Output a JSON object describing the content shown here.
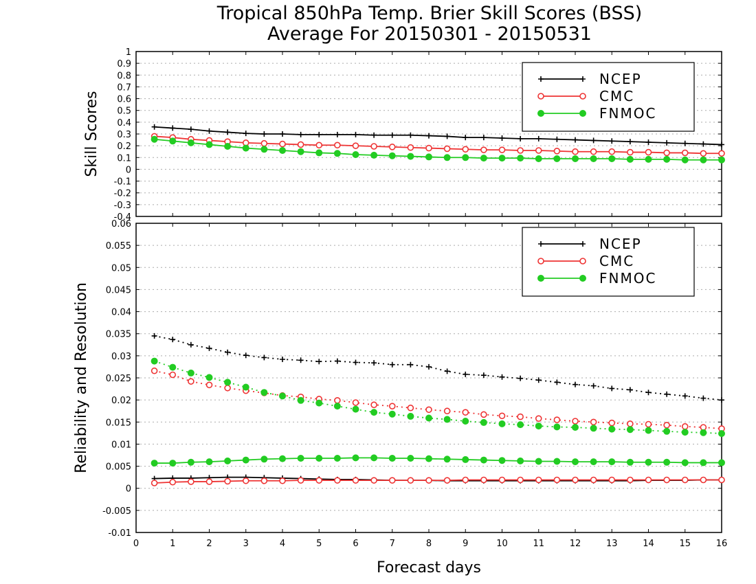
{
  "title_line1": "Tropical 850hPa Temp. Brier Skill Scores (BSS)",
  "title_line2": "Average For 20150301 - 20150531",
  "xlabel": "Forecast days",
  "chart_data": [
    {
      "type": "line",
      "ylabel": "Skill Scores",
      "xlim": [
        0,
        16
      ],
      "ylim": [
        -0.4,
        1
      ],
      "yticks": [
        -0.4,
        -0.3,
        -0.2,
        -0.1,
        0,
        0.1,
        0.2,
        0.3,
        0.4,
        0.5,
        0.6,
        0.7,
        0.8,
        0.9,
        1
      ],
      "ytick_labels": [
        "-0.4",
        "-0.3",
        "-0.2",
        "-0.1",
        "0",
        "0.1",
        "0.2",
        "0.3",
        "0.4",
        "0.5",
        "0.6",
        "0.7",
        "0.8",
        "0.9",
        "1"
      ],
      "xticks": [
        0,
        1,
        2,
        3,
        4,
        5,
        6,
        7,
        8,
        9,
        10,
        11,
        12,
        13,
        14,
        15,
        16
      ],
      "grid": true,
      "legend_position": "top-right",
      "legend": [
        "NCEP",
        "CMC",
        "FNMOC"
      ],
      "x": [
        0.5,
        1,
        1.5,
        2,
        2.5,
        3,
        3.5,
        4,
        4.5,
        5,
        5.5,
        6,
        6.5,
        7,
        7.5,
        8,
        8.5,
        9,
        9.5,
        10,
        10.5,
        11,
        11.5,
        12,
        12.5,
        13,
        13.5,
        14,
        14.5,
        15,
        15.5,
        16
      ],
      "series": [
        {
          "name": "NCEP",
          "color": "#000000",
          "marker": "plus",
          "style": "solid",
          "values": [
            0.36,
            0.35,
            0.34,
            0.325,
            0.315,
            0.305,
            0.3,
            0.3,
            0.295,
            0.295,
            0.295,
            0.295,
            0.29,
            0.29,
            0.29,
            0.285,
            0.28,
            0.27,
            0.27,
            0.265,
            0.26,
            0.26,
            0.255,
            0.25,
            0.245,
            0.24,
            0.235,
            0.23,
            0.225,
            0.22,
            0.215,
            0.21
          ]
        },
        {
          "name": "CMC",
          "color": "#ee3333",
          "marker": "open-circle",
          "style": "solid",
          "values": [
            0.28,
            0.27,
            0.255,
            0.245,
            0.235,
            0.225,
            0.22,
            0.215,
            0.21,
            0.205,
            0.205,
            0.2,
            0.195,
            0.19,
            0.185,
            0.18,
            0.175,
            0.17,
            0.165,
            0.165,
            0.16,
            0.16,
            0.155,
            0.15,
            0.15,
            0.15,
            0.145,
            0.145,
            0.14,
            0.14,
            0.135,
            0.135
          ]
        },
        {
          "name": "FNMOC",
          "color": "#22cc22",
          "marker": "filled-circle",
          "style": "solid",
          "values": [
            0.255,
            0.24,
            0.225,
            0.21,
            0.195,
            0.18,
            0.17,
            0.16,
            0.15,
            0.14,
            0.135,
            0.125,
            0.12,
            0.115,
            0.11,
            0.105,
            0.1,
            0.1,
            0.095,
            0.095,
            0.095,
            0.09,
            0.09,
            0.09,
            0.09,
            0.09,
            0.085,
            0.085,
            0.085,
            0.08,
            0.08,
            0.08
          ]
        }
      ]
    },
    {
      "type": "line",
      "ylabel": "Reliability and Resolution",
      "xlim": [
        0,
        16
      ],
      "ylim": [
        -0.01,
        0.06
      ],
      "yticks": [
        -0.01,
        -0.005,
        0,
        0.005,
        0.01,
        0.015,
        0.02,
        0.025,
        0.03,
        0.035,
        0.04,
        0.045,
        0.05,
        0.055,
        0.06
      ],
      "ytick_labels": [
        "-0.01",
        "-0.005",
        "0",
        "0.005",
        "0.01",
        "0.015",
        "0.02",
        "0.025",
        "0.03",
        "0.035",
        "0.04",
        "0.045",
        "0.05",
        "0.055",
        "0.06"
      ],
      "xticks": [
        0,
        1,
        2,
        3,
        4,
        5,
        6,
        7,
        8,
        9,
        10,
        11,
        12,
        13,
        14,
        15,
        16
      ],
      "xtick_labels": [
        "0",
        "1",
        "2",
        "3",
        "4",
        "5",
        "6",
        "7",
        "8",
        "9",
        "10",
        "11",
        "12",
        "13",
        "14",
        "15",
        "16"
      ],
      "grid": true,
      "legend_position": "top-right",
      "legend": [
        "NCEP",
        "CMC",
        "FNMOC"
      ],
      "x": [
        0.5,
        1,
        1.5,
        2,
        2.5,
        3,
        3.5,
        4,
        4.5,
        5,
        5.5,
        6,
        6.5,
        7,
        7.5,
        8,
        8.5,
        9,
        9.5,
        10,
        10.5,
        11,
        11.5,
        12,
        12.5,
        13,
        13.5,
        14,
        14.5,
        15,
        15.5,
        16
      ],
      "series": [
        {
          "name": "NCEP",
          "color": "#000000",
          "marker": "plus",
          "style": "dotted",
          "values": [
            0.0345,
            0.0337,
            0.0325,
            0.0317,
            0.0308,
            0.0301,
            0.0296,
            0.0292,
            0.029,
            0.0287,
            0.0288,
            0.0285,
            0.0284,
            0.028,
            0.028,
            0.0275,
            0.0265,
            0.0258,
            0.0256,
            0.0252,
            0.0249,
            0.0245,
            0.024,
            0.0235,
            0.0232,
            0.0226,
            0.0223,
            0.0217,
            0.0213,
            0.0209,
            0.0204,
            0.02
          ]
        },
        {
          "name": "CMC",
          "color": "#ee3333",
          "marker": "open-circle",
          "style": "dotted",
          "values": [
            0.0266,
            0.0257,
            0.0242,
            0.0234,
            0.0227,
            0.0221,
            0.0216,
            0.021,
            0.0207,
            0.0202,
            0.0199,
            0.0194,
            0.0189,
            0.0186,
            0.0182,
            0.0178,
            0.0175,
            0.0172,
            0.0167,
            0.0164,
            0.0162,
            0.0158,
            0.0155,
            0.0152,
            0.015,
            0.0148,
            0.0146,
            0.0145,
            0.0143,
            0.014,
            0.0138,
            0.0135
          ]
        },
        {
          "name": "FNMOC",
          "color": "#22cc22",
          "marker": "filled-circle",
          "style": "dotted",
          "values": [
            0.0288,
            0.0274,
            0.0261,
            0.0251,
            0.024,
            0.0229,
            0.0217,
            0.0209,
            0.0199,
            0.0193,
            0.0186,
            0.0179,
            0.0172,
            0.0168,
            0.0163,
            0.0159,
            0.0156,
            0.0152,
            0.0149,
            0.0146,
            0.0144,
            0.0141,
            0.0139,
            0.0138,
            0.0136,
            0.0134,
            0.0133,
            0.0131,
            0.0129,
            0.0127,
            0.0126,
            0.0124
          ]
        },
        {
          "name": "NCEP",
          "color": "#000000",
          "marker": "plus",
          "style": "solid",
          "values": [
            0.0022,
            0.0023,
            0.0023,
            0.0024,
            0.0025,
            0.0025,
            0.0024,
            0.0023,
            0.0022,
            0.0021,
            0.002,
            0.002,
            0.0019,
            0.0018,
            0.0018,
            0.0018,
            0.0017,
            0.0017,
            0.0017,
            0.0017,
            0.0017,
            0.0017,
            0.0017,
            0.0017,
            0.0017,
            0.0017,
            0.0017,
            0.0018,
            0.0018,
            0.0018,
            0.0019,
            0.0019
          ]
        },
        {
          "name": "CMC",
          "color": "#ee3333",
          "marker": "open-circle",
          "style": "solid",
          "values": [
            0.0012,
            0.0014,
            0.0015,
            0.0015,
            0.0016,
            0.0017,
            0.0017,
            0.0017,
            0.0018,
            0.0018,
            0.0018,
            0.0018,
            0.0018,
            0.0018,
            0.0018,
            0.0018,
            0.0018,
            0.0019,
            0.0019,
            0.0019,
            0.0019,
            0.0019,
            0.0019,
            0.0019,
            0.0019,
            0.0019,
            0.0019,
            0.0019,
            0.0019,
            0.0019,
            0.0019,
            0.0019
          ]
        },
        {
          "name": "FNMOC",
          "color": "#22cc22",
          "marker": "filled-circle",
          "style": "solid",
          "values": [
            0.0057,
            0.0057,
            0.0059,
            0.006,
            0.0062,
            0.0064,
            0.0066,
            0.0067,
            0.0068,
            0.0068,
            0.0068,
            0.0069,
            0.0069,
            0.0068,
            0.0068,
            0.0067,
            0.0066,
            0.0065,
            0.0064,
            0.0063,
            0.0062,
            0.0061,
            0.0061,
            0.006,
            0.006,
            0.006,
            0.0059,
            0.0059,
            0.0059,
            0.0058,
            0.0058,
            0.0058
          ]
        }
      ]
    }
  ]
}
